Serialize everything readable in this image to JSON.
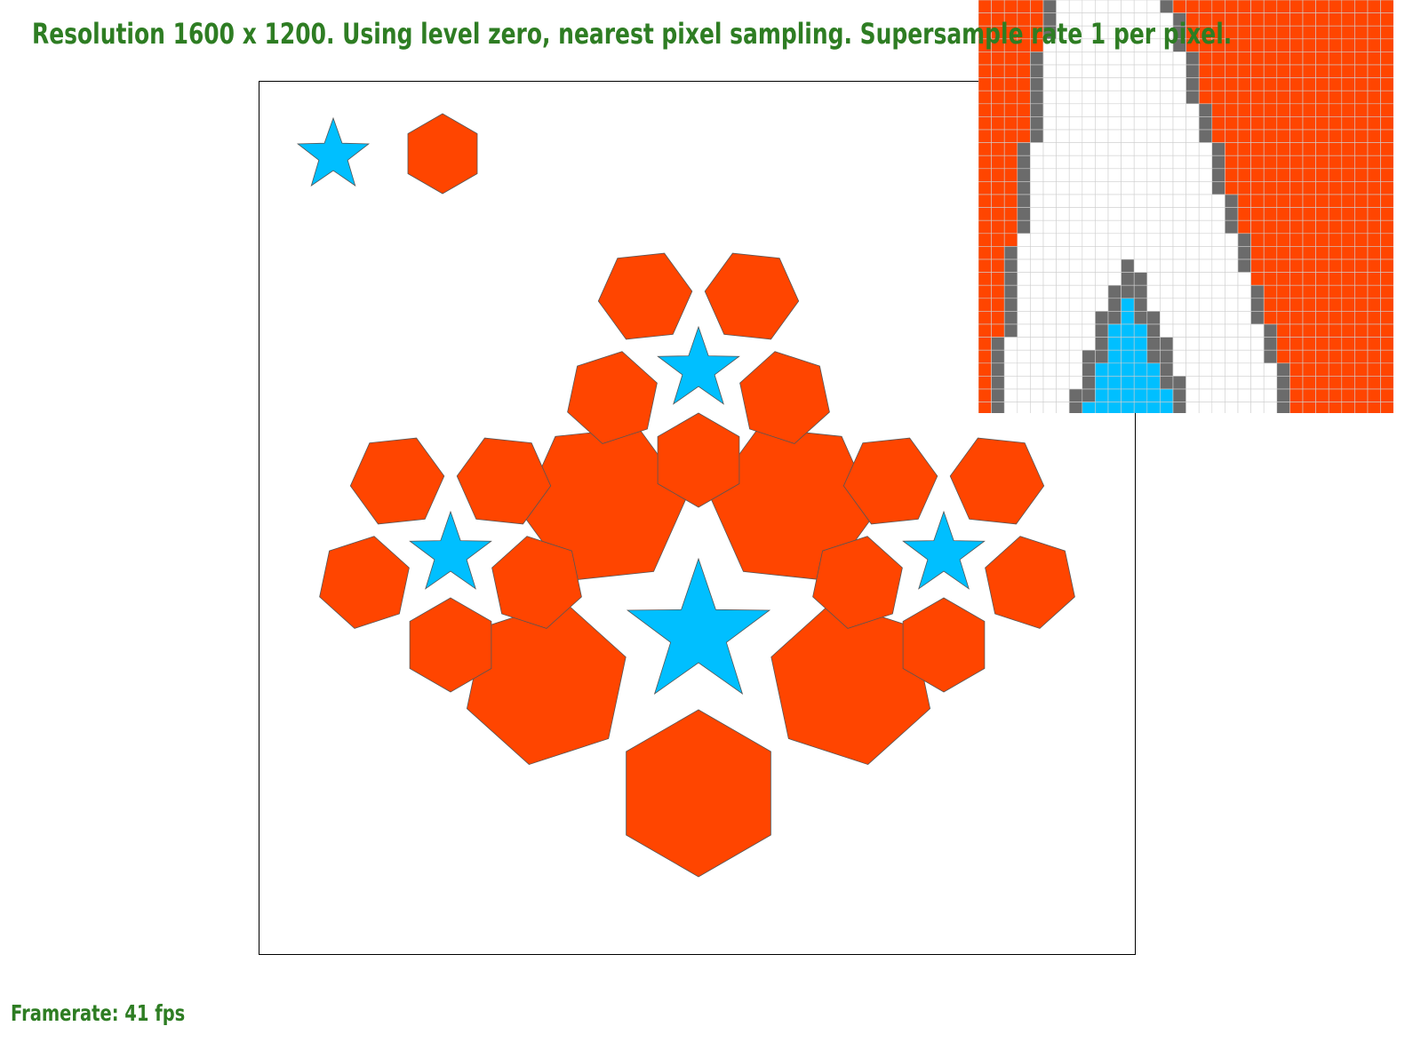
{
  "hud": {
    "title": "Resolution 1600 x 1200. Using level zero, nearest pixel sampling. Supersample rate 1 per pixel.",
    "framerate": "Framerate: 41 fps"
  },
  "colors": {
    "text": "#2e7d23",
    "star": "#00bfff",
    "hexagon": "#ff4500",
    "edge": "#6b6b6b",
    "outline": "#555555",
    "background": "#ffffff",
    "grid": "#cfcfcf"
  },
  "icons": {
    "star": "star-icon",
    "hexagon": "hexagon-icon"
  }
}
